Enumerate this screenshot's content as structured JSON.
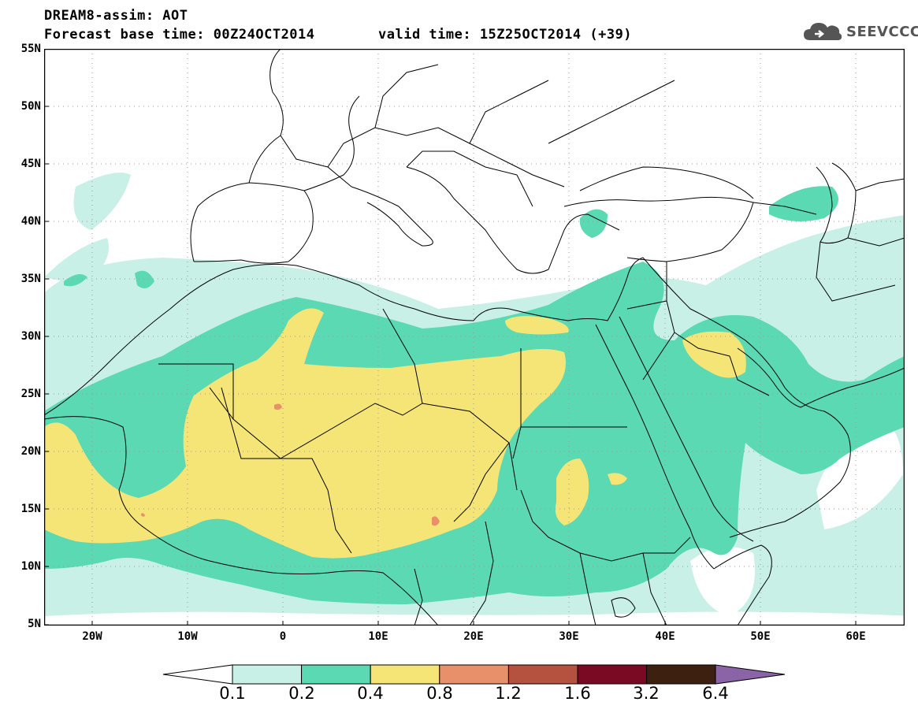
{
  "header": {
    "title": "DREAM8-assim: AOT",
    "base_time": "Forecast base time: 00Z24OCT2014",
    "valid_time": "valid time: 15Z25OCT2014 (+39)"
  },
  "logo": {
    "text": "SEEVCCC",
    "icon": "cloud-icon"
  },
  "map": {
    "lat_ticks": [
      "55N",
      "50N",
      "45N",
      "40N",
      "35N",
      "30N",
      "25N",
      "20N",
      "15N",
      "10N",
      "5N"
    ],
    "lon_ticks": [
      "20W",
      "10W",
      "0",
      "10E",
      "20E",
      "30E",
      "40E",
      "50E",
      "60E"
    ],
    "lat_range": [
      5,
      55
    ],
    "lon_range": [
      -25,
      65
    ],
    "gridlines": "dotted"
  },
  "colorbar": {
    "labels": [
      "0.1",
      "0.2",
      "0.4",
      "0.8",
      "1.2",
      "1.6",
      "3.2",
      "6.4"
    ],
    "colors": [
      "#c8f0e6",
      "#5ad9b3",
      "#f5e577",
      "#e8906a",
      "#b5523f",
      "#7a0a24",
      "#3d2010",
      "#8a64a6"
    ]
  }
}
